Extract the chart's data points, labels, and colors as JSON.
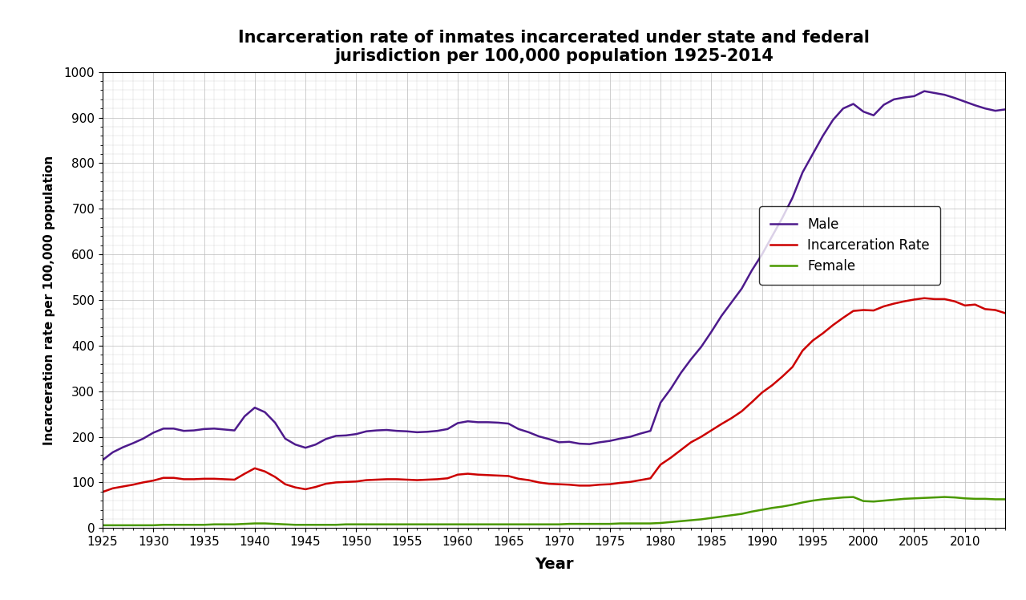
{
  "title": "Incarceration rate of inmates incarcerated under state and federal\njurisdiction per 100,000 population 1925-2014",
  "xlabel": "Year",
  "ylabel": "Incarceration rate per 100,000 population",
  "xlim": [
    1925,
    2014
  ],
  "ylim": [
    0,
    1000
  ],
  "yticks": [
    0,
    100,
    200,
    300,
    400,
    500,
    600,
    700,
    800,
    900,
    1000
  ],
  "xticks": [
    1925,
    1930,
    1935,
    1940,
    1945,
    1950,
    1955,
    1960,
    1965,
    1970,
    1975,
    1980,
    1985,
    1990,
    1995,
    2000,
    2005,
    2010
  ],
  "male_color": "#4d1a8c",
  "incarceration_color": "#cc0000",
  "female_color": "#4a9900",
  "background_color": "#ffffff",
  "grid_color": "#bbbbbb",
  "male_data": {
    "years": [
      1925,
      1926,
      1927,
      1928,
      1929,
      1930,
      1931,
      1932,
      1933,
      1934,
      1935,
      1936,
      1937,
      1938,
      1939,
      1940,
      1941,
      1942,
      1943,
      1944,
      1945,
      1946,
      1947,
      1948,
      1949,
      1950,
      1951,
      1952,
      1953,
      1954,
      1955,
      1956,
      1957,
      1958,
      1959,
      1960,
      1961,
      1962,
      1963,
      1964,
      1965,
      1966,
      1967,
      1968,
      1969,
      1970,
      1971,
      1972,
      1973,
      1974,
      1975,
      1976,
      1977,
      1978,
      1979,
      1980,
      1981,
      1982,
      1983,
      1984,
      1985,
      1986,
      1987,
      1988,
      1989,
      1990,
      1991,
      1992,
      1993,
      1994,
      1995,
      1996,
      1997,
      1998,
      1999,
      2000,
      2001,
      2002,
      2003,
      2004,
      2005,
      2006,
      2007,
      2008,
      2009,
      2010,
      2011,
      2012,
      2013,
      2014
    ],
    "values": [
      149,
      166,
      177,
      186,
      196,
      209,
      218,
      218,
      213,
      214,
      217,
      218,
      216,
      214,
      245,
      264,
      254,
      231,
      196,
      183,
      176,
      183,
      195,
      202,
      203,
      206,
      212,
      214,
      215,
      213,
      212,
      210,
      211,
      213,
      217,
      230,
      234,
      232,
      232,
      231,
      229,
      217,
      210,
      201,
      195,
      188,
      189,
      185,
      184,
      188,
      191,
      196,
      200,
      207,
      213,
      275,
      305,
      340,
      370,
      397,
      430,
      465,
      495,
      525,
      565,
      600,
      640,
      680,
      724,
      780,
      820,
      860,
      895,
      920,
      930,
      913,
      905,
      928,
      940,
      944,
      947,
      958,
      954,
      950,
      943,
      935,
      927,
      920,
      915,
      918
    ]
  },
  "incarceration_data": {
    "years": [
      1925,
      1926,
      1927,
      1928,
      1929,
      1930,
      1931,
      1932,
      1933,
      1934,
      1935,
      1936,
      1937,
      1938,
      1939,
      1940,
      1941,
      1942,
      1943,
      1944,
      1945,
      1946,
      1947,
      1948,
      1949,
      1950,
      1951,
      1952,
      1953,
      1954,
      1955,
      1956,
      1957,
      1958,
      1959,
      1960,
      1961,
      1962,
      1963,
      1964,
      1965,
      1966,
      1967,
      1968,
      1969,
      1970,
      1971,
      1972,
      1973,
      1974,
      1975,
      1976,
      1977,
      1978,
      1979,
      1980,
      1981,
      1982,
      1983,
      1984,
      1985,
      1986,
      1987,
      1988,
      1989,
      1990,
      1991,
      1992,
      1993,
      1994,
      1995,
      1996,
      1997,
      1998,
      1999,
      2000,
      2001,
      2002,
      2003,
      2004,
      2005,
      2006,
      2007,
      2008,
      2009,
      2010,
      2011,
      2012,
      2013,
      2014
    ],
    "values": [
      79,
      87,
      91,
      95,
      100,
      104,
      110,
      110,
      107,
      107,
      108,
      108,
      107,
      106,
      119,
      131,
      124,
      112,
      96,
      89,
      85,
      90,
      97,
      100,
      101,
      102,
      105,
      106,
      107,
      107,
      106,
      105,
      106,
      107,
      109,
      117,
      119,
      117,
      116,
      115,
      114,
      108,
      105,
      100,
      97,
      96,
      95,
      93,
      93,
      95,
      96,
      99,
      101,
      105,
      109,
      139,
      154,
      171,
      188,
      200,
      214,
      228,
      241,
      256,
      276,
      297,
      313,
      332,
      353,
      389,
      411,
      427,
      445,
      461,
      476,
      478,
      477,
      486,
      492,
      497,
      501,
      504,
      502,
      502,
      497,
      488,
      490,
      480,
      478,
      471
    ]
  },
  "female_data": {
    "years": [
      1925,
      1926,
      1927,
      1928,
      1929,
      1930,
      1931,
      1932,
      1933,
      1934,
      1935,
      1936,
      1937,
      1938,
      1939,
      1940,
      1941,
      1942,
      1943,
      1944,
      1945,
      1946,
      1947,
      1948,
      1949,
      1950,
      1951,
      1952,
      1953,
      1954,
      1955,
      1956,
      1957,
      1958,
      1959,
      1960,
      1961,
      1962,
      1963,
      1964,
      1965,
      1966,
      1967,
      1968,
      1969,
      1970,
      1971,
      1972,
      1973,
      1974,
      1975,
      1976,
      1977,
      1978,
      1979,
      1980,
      1981,
      1982,
      1983,
      1984,
      1985,
      1986,
      1987,
      1988,
      1989,
      1990,
      1991,
      1992,
      1993,
      1994,
      1995,
      1996,
      1997,
      1998,
      1999,
      2000,
      2001,
      2002,
      2003,
      2004,
      2005,
      2006,
      2007,
      2008,
      2009,
      2010,
      2011,
      2012,
      2013,
      2014
    ],
    "values": [
      6,
      6,
      6,
      6,
      6,
      6,
      7,
      7,
      7,
      7,
      7,
      8,
      8,
      8,
      9,
      10,
      10,
      9,
      8,
      7,
      7,
      7,
      7,
      7,
      8,
      8,
      8,
      8,
      8,
      8,
      8,
      8,
      8,
      8,
      8,
      8,
      8,
      8,
      8,
      8,
      8,
      8,
      8,
      8,
      8,
      8,
      9,
      9,
      9,
      9,
      9,
      10,
      10,
      10,
      10,
      11,
      13,
      15,
      17,
      19,
      22,
      25,
      28,
      31,
      36,
      40,
      44,
      47,
      51,
      56,
      60,
      63,
      65,
      67,
      68,
      59,
      58,
      60,
      62,
      64,
      65,
      66,
      67,
      68,
      67,
      65,
      64,
      64,
      63,
      63
    ]
  }
}
